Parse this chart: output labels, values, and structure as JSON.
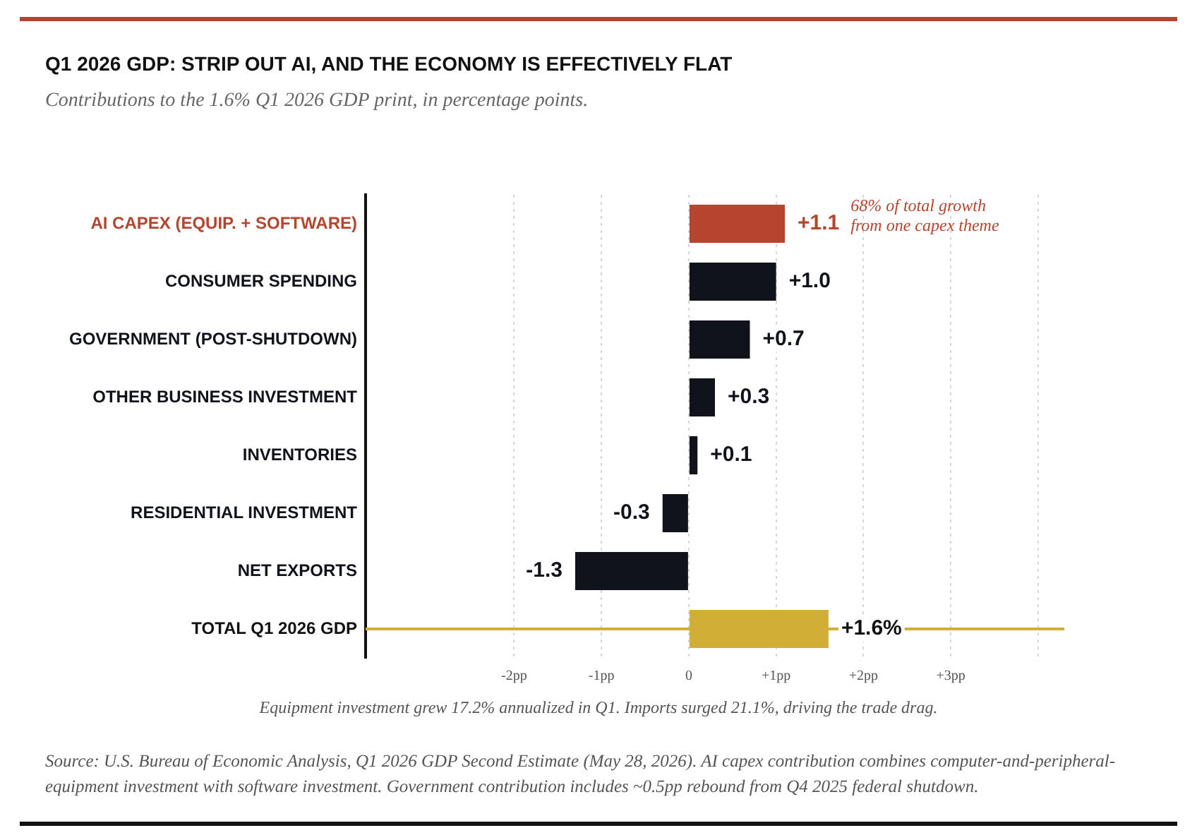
{
  "chart_data": {
    "type": "bar",
    "orientation": "horizontal",
    "title": "Q1 2026 GDP: STRIP OUT AI, AND THE ECONOMY IS EFFECTIVELY FLAT",
    "subtitle": "Contributions to the 1.6% Q1 2026 GDP print, in percentage points.",
    "categories": [
      "AI CAPEX (EQUIP. + SOFTWARE)",
      "CONSUMER SPENDING",
      "GOVERNMENT (POST-SHUTDOWN)",
      "OTHER BUSINESS INVESTMENT",
      "INVENTORIES",
      "RESIDENTIAL INVESTMENT",
      "NET EXPORTS",
      "TOTAL Q1 2026 GDP"
    ],
    "values": [
      1.1,
      1.0,
      0.7,
      0.3,
      0.1,
      -0.3,
      -1.3,
      1.6
    ],
    "colors": [
      "#b5452f",
      "#11131a",
      "#11131a",
      "#11131a",
      "#11131a",
      "#11131a",
      "#11131a",
      "#d1ae35"
    ],
    "value_labels": [
      "+1.1",
      "+1.0",
      "+0.7",
      "+0.3",
      "+0.1",
      "-0.3",
      "-1.3",
      "+1.6%"
    ],
    "xlim": [
      -3.7,
      4.3
    ],
    "xticks": [
      {
        "value": -2,
        "label": "-2pp"
      },
      {
        "value": -1,
        "label": "-1pp"
      },
      0,
      {
        "value": 1,
        "label": "+1pp"
      },
      {
        "value": 2,
        "label": "+2pp"
      },
      {
        "value": 3,
        "label": "+3pp"
      },
      {
        "value": 4,
        "label": null
      }
    ],
    "grid": "x",
    "ref_lines": [
      {
        "axis": "y",
        "value": "TOTAL Q1 2026 GDP",
        "color": "#d1ae35"
      }
    ],
    "annotations": [
      "68% of total growth\nfrom one capex theme",
      "Equipment investment grew 17.2% annualized in Q1. Imports surged 21.1%, driving the trade drag.",
      "Source: U.S. Bureau of Economic Analysis, Q1 2026 GDP Second Estimate (May 28, 2026). AI capex contribution combines computer-and-peripheral-equipment investment with software investment. Government contribution includes ~0.5pp rebound from Q4 2025 federal shutdown."
    ]
  }
}
